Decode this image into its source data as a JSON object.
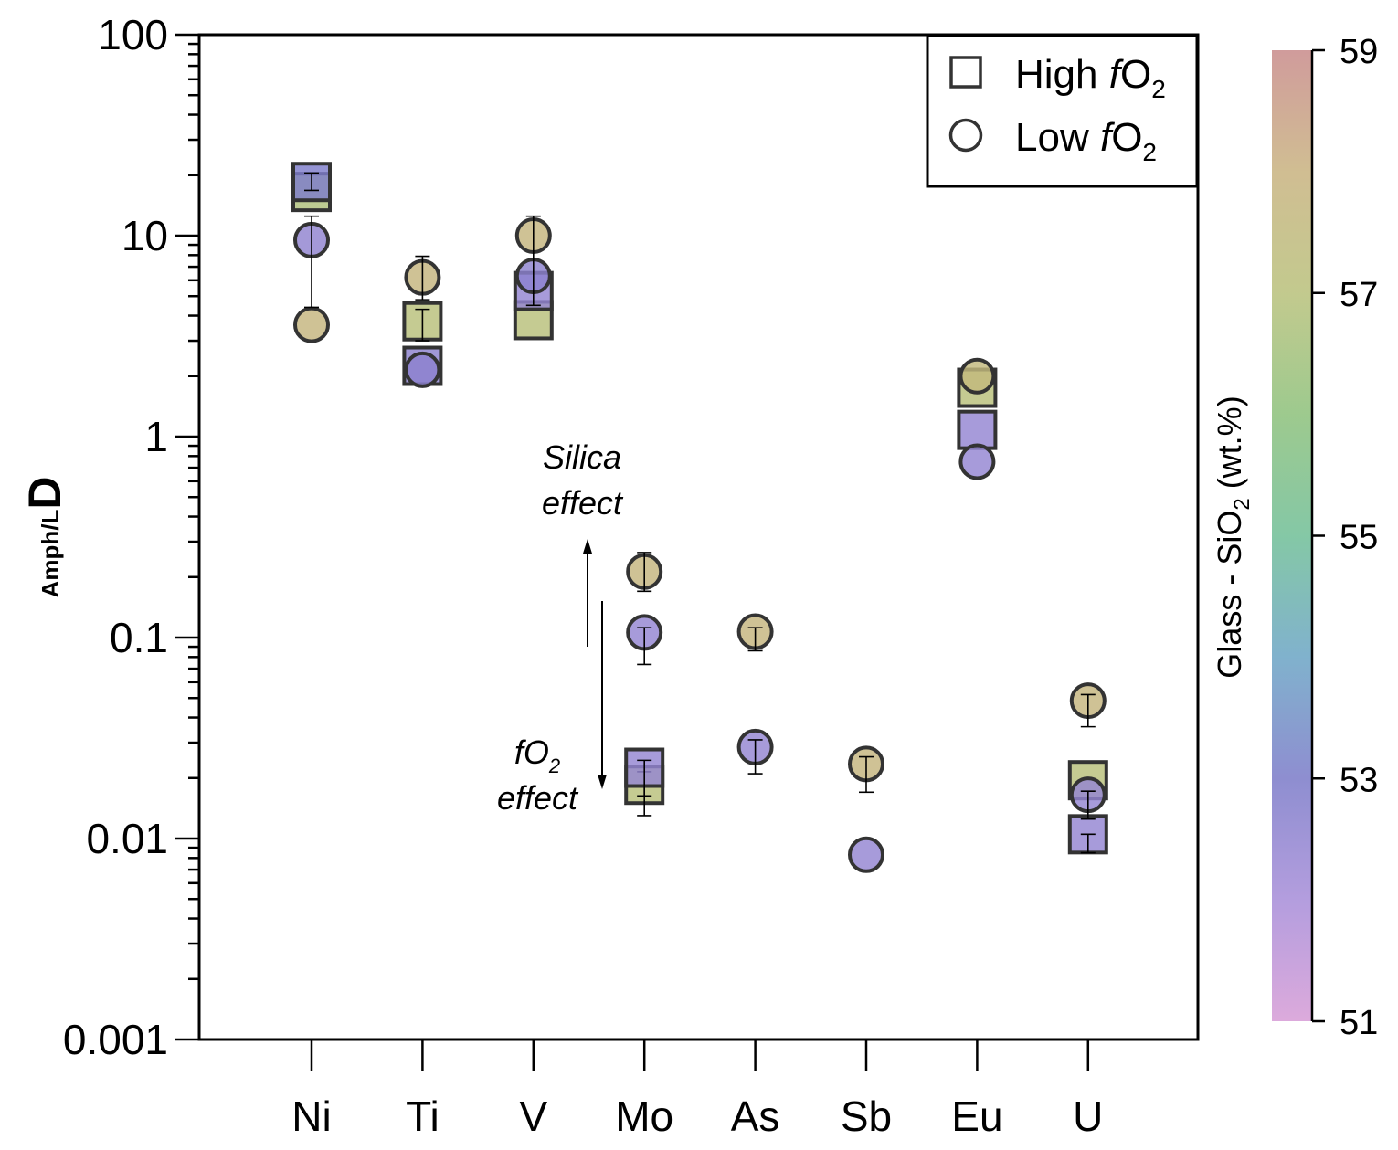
{
  "chart_data": {
    "type": "scatter",
    "yscale": "log",
    "ylim": [
      0.001,
      100
    ],
    "y_ticks": [
      "0.001",
      "0.01",
      "0.1",
      "1",
      "10",
      "100"
    ],
    "ylabel_sub": "Amph/L",
    "ylabel_main": "D",
    "categories": [
      "Ni",
      "Ti",
      "V",
      "Mo",
      "As",
      "Sb",
      "Eu",
      "U"
    ],
    "legend": {
      "position": "top-right",
      "items": [
        {
          "marker": "square",
          "label_pre": "High ",
          "label_italic": "f",
          "label_main": "O",
          "label_sub": "2"
        },
        {
          "marker": "circle",
          "label_pre": "Low ",
          "label_italic": "f",
          "label_main": "O",
          "label_sub": "2"
        }
      ]
    },
    "colorbar": {
      "label_main": "Glass - SiO",
      "label_sub": "2",
      "label_suffix": " (wt.%)",
      "range": [
        51,
        59
      ],
      "ticks": [
        "51",
        "53",
        "55",
        "57",
        "59"
      ],
      "colors": [
        {
          "sio2": 51,
          "color": "#d69bd6"
        },
        {
          "sio2": 52,
          "color": "#a68cd8"
        },
        {
          "sio2": 53,
          "color": "#7a7ac8"
        },
        {
          "sio2": 54,
          "color": "#6aa4c4"
        },
        {
          "sio2": 55,
          "color": "#6fbe96"
        },
        {
          "sio2": 56,
          "color": "#8cc07a"
        },
        {
          "sio2": 57,
          "color": "#b8c07a"
        },
        {
          "sio2": 58,
          "color": "#c8b27f"
        },
        {
          "sio2": 59,
          "color": "#c88a8a"
        }
      ]
    },
    "annotations": {
      "silica": [
        "Silica",
        "effect"
      ],
      "fo2": {
        "italic": "f",
        "main": "O",
        "sub": "2",
        "line2": "effect"
      }
    },
    "points": [
      {
        "cat": "Ni",
        "marker": "square",
        "value": 16.5,
        "sio2": 56.8
      },
      {
        "cat": "Ni",
        "marker": "square",
        "value": 18.5,
        "sio2": 52.9,
        "err": [
          16.8,
          20.5
        ]
      },
      {
        "cat": "Ni",
        "marker": "circle",
        "value": 3.6,
        "sio2": 57.8
      },
      {
        "cat": "Ni",
        "marker": "circle",
        "value": 9.5,
        "sio2": 52.5,
        "err": [
          4.4,
          12.5
        ]
      },
      {
        "cat": "Ti",
        "marker": "square",
        "value": 2.25,
        "sio2": 52.6
      },
      {
        "cat": "Ti",
        "marker": "square",
        "value": 3.75,
        "sio2": 57.0,
        "err": [
          3.0,
          4.3
        ]
      },
      {
        "cat": "Ti",
        "marker": "circle",
        "value": 2.15,
        "sio2": 52.6
      },
      {
        "cat": "Ti",
        "marker": "circle",
        "value": 6.2,
        "sio2": 57.8,
        "err": [
          4.8,
          7.9
        ]
      },
      {
        "cat": "V",
        "marker": "square",
        "value": 3.8,
        "sio2": 57.0
      },
      {
        "cat": "V",
        "marker": "square",
        "value": 5.3,
        "sio2": 52.4
      },
      {
        "cat": "V",
        "marker": "circle",
        "value": 6.3,
        "sio2": 52.6
      },
      {
        "cat": "V",
        "marker": "circle",
        "value": 10.0,
        "sio2": 57.8,
        "err": [
          4.5,
          12.5
        ]
      },
      {
        "cat": "Mo",
        "marker": "square",
        "value": 0.0185,
        "sio2": 57.0,
        "err": [
          0.0163,
          0.0215
        ]
      },
      {
        "cat": "Mo",
        "marker": "square",
        "value": 0.0225,
        "sio2": 52.4,
        "err": [
          0.013,
          0.0245
        ]
      },
      {
        "cat": "Mo",
        "marker": "circle",
        "value": 0.106,
        "sio2": 52.4,
        "err": [
          0.0735,
          0.112
        ]
      },
      {
        "cat": "Mo",
        "marker": "circle",
        "value": 0.213,
        "sio2": 57.8,
        "err": [
          0.17,
          0.265
        ]
      },
      {
        "cat": "As",
        "marker": "circle",
        "value": 0.107,
        "sio2": 57.8,
        "err": [
          0.086,
          0.112
        ]
      },
      {
        "cat": "As",
        "marker": "circle",
        "value": 0.0285,
        "sio2": 52.4,
        "err": [
          0.021,
          0.031
        ]
      },
      {
        "cat": "Sb",
        "marker": "circle",
        "value": 0.0235,
        "sio2": 57.8,
        "err": [
          0.017,
          0.0255
        ]
      },
      {
        "cat": "Sb",
        "marker": "circle",
        "value": 0.0083,
        "sio2": 52.4
      },
      {
        "cat": "Eu",
        "marker": "square",
        "value": 1.75,
        "sio2": 57.0
      },
      {
        "cat": "Eu",
        "marker": "square",
        "value": 1.08,
        "sio2": 52.4
      },
      {
        "cat": "Eu",
        "marker": "circle",
        "value": 2.0,
        "sio2": 57.6
      },
      {
        "cat": "Eu",
        "marker": "circle",
        "value": 0.75,
        "sio2": 52.4
      },
      {
        "cat": "U",
        "marker": "square",
        "value": 0.0195,
        "sio2": 57.0
      },
      {
        "cat": "U",
        "marker": "square",
        "value": 0.0105,
        "sio2": 52.4,
        "err": [
          0.0085,
          0.0105
        ]
      },
      {
        "cat": "U",
        "marker": "circle",
        "value": 0.0485,
        "sio2": 57.8,
        "err": [
          0.036,
          0.052
        ]
      },
      {
        "cat": "U",
        "marker": "circle",
        "value": 0.0165,
        "sio2": 52.4,
        "err": [
          0.0125,
          0.0172
        ]
      }
    ]
  }
}
